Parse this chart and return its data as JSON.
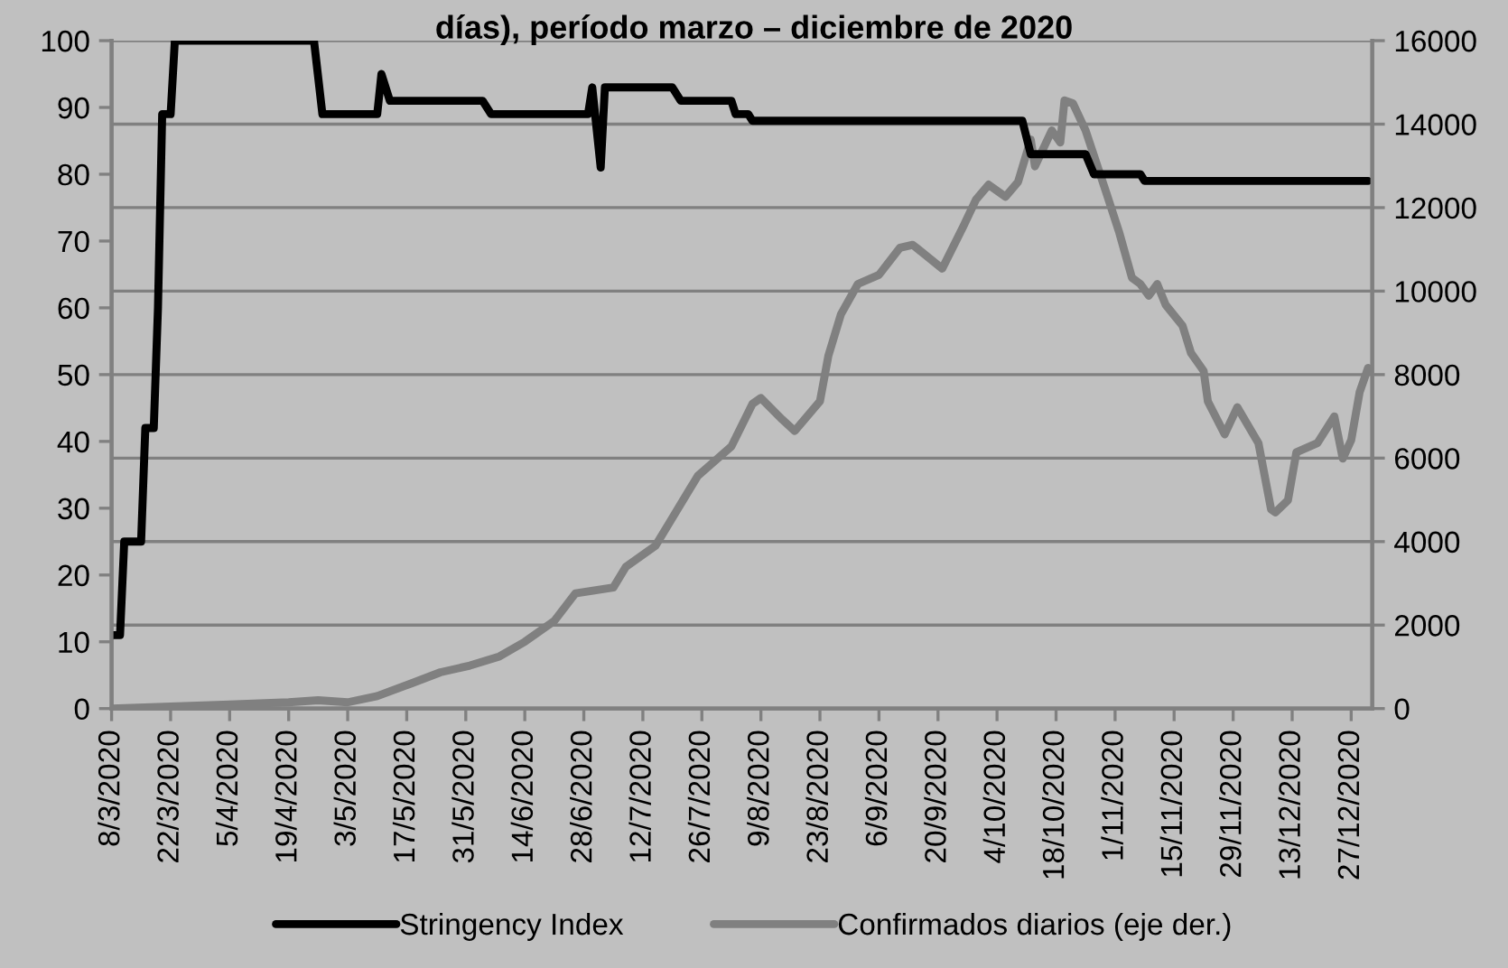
{
  "chart_data": {
    "type": "line",
    "title": "días), período marzo – diciembre de 2020",
    "series": [
      {
        "name": "Stringency Index",
        "color": "#000000",
        "x": [
          "2020-03-08",
          "2020-03-10",
          "2020-03-11",
          "2020-03-15",
          "2020-03-16",
          "2020-03-18",
          "2020-03-19",
          "2020-03-20",
          "2020-03-22",
          "2020-03-23",
          "2020-04-25",
          "2020-04-27",
          "2020-05-10",
          "2020-05-11",
          "2020-05-13",
          "2020-06-04",
          "2020-06-06",
          "2020-06-29",
          "2020-06-30",
          "2020-07-02",
          "2020-07-03",
          "2020-07-19",
          "2020-07-21",
          "2020-08-02",
          "2020-08-03",
          "2020-08-06",
          "2020-08-07",
          "2020-10-10",
          "2020-10-12",
          "2020-10-25",
          "2020-10-27",
          "2020-11-07",
          "2020-11-08",
          "2020-12-31"
        ],
        "values": [
          11,
          11,
          25,
          25,
          42,
          42,
          60,
          89,
          89,
          100,
          100,
          89,
          89,
          95,
          91,
          91,
          89,
          89,
          93,
          81,
          93,
          93,
          91,
          91,
          89,
          89,
          88,
          88,
          83,
          83,
          80,
          80,
          79,
          79
        ]
      },
      {
        "name": "Confirmados diarios (eje der.)",
        "color": "#808080",
        "axis": "y2",
        "x": [
          "2020-03-08",
          "2020-03-22",
          "2020-04-05",
          "2020-04-19",
          "2020-04-26",
          "2020-05-03",
          "2020-05-10",
          "2020-05-18",
          "2020-05-25",
          "2020-06-01",
          "2020-06-08",
          "2020-06-14",
          "2020-06-21",
          "2020-06-26",
          "2020-07-05",
          "2020-07-08",
          "2020-07-15",
          "2020-07-18",
          "2020-07-25",
          "2020-08-02",
          "2020-08-07",
          "2020-08-09",
          "2020-08-14",
          "2020-08-17",
          "2020-08-23",
          "2020-08-25",
          "2020-08-28",
          "2020-09-01",
          "2020-09-06",
          "2020-09-11",
          "2020-09-14",
          "2020-09-21",
          "2020-09-26",
          "2020-09-29",
          "2020-10-02",
          "2020-10-06",
          "2020-10-09",
          "2020-10-12",
          "2020-10-13",
          "2020-10-17",
          "2020-10-19",
          "2020-10-20",
          "2020-10-22",
          "2020-10-25",
          "2020-10-30",
          "2020-11-02",
          "2020-11-05",
          "2020-11-07",
          "2020-11-09",
          "2020-11-11",
          "2020-11-13",
          "2020-11-17",
          "2020-11-19",
          "2020-11-22",
          "2020-11-23",
          "2020-11-27",
          "2020-11-30",
          "2020-12-05",
          "2020-12-08",
          "2020-12-09",
          "2020-12-12",
          "2020-12-14",
          "2020-12-19",
          "2020-12-23",
          "2020-12-25",
          "2020-12-27",
          "2020-12-29",
          "2020-12-31"
        ],
        "values": [
          0,
          50,
          100,
          150,
          200,
          150,
          300,
          600,
          870,
          1030,
          1250,
          1600,
          2100,
          2760,
          2900,
          3400,
          3900,
          4400,
          5570,
          6280,
          7300,
          7440,
          6930,
          6650,
          7360,
          8450,
          9450,
          10170,
          10390,
          11040,
          11110,
          10540,
          11550,
          12190,
          12550,
          12260,
          12620,
          13630,
          12990,
          13850,
          13560,
          14570,
          14500,
          13850,
          12330,
          11400,
          10320,
          10170,
          9890,
          10170,
          9670,
          9170,
          8520,
          8090,
          7360,
          6570,
          7220,
          6360,
          4770,
          4700,
          4990,
          6140,
          6360,
          7000,
          5990,
          6430,
          7580,
          8160
        ]
      }
    ],
    "xlim": [
      "2020-03-08",
      "2021-01-01"
    ],
    "xticks": [
      {
        "value": "2020-03-08",
        "label": "8/3/2020"
      },
      {
        "value": "2020-03-22",
        "label": "22/3/2020"
      },
      {
        "value": "2020-04-05",
        "label": "5/4/2020"
      },
      {
        "value": "2020-04-19",
        "label": "19/4/2020"
      },
      {
        "value": "2020-05-03",
        "label": "3/5/2020"
      },
      {
        "value": "2020-05-17",
        "label": "17/5/2020"
      },
      {
        "value": "2020-05-31",
        "label": "31/5/2020"
      },
      {
        "value": "2020-06-14",
        "label": "14/6/2020"
      },
      {
        "value": "2020-06-28",
        "label": "28/6/2020"
      },
      {
        "value": "2020-07-12",
        "label": "12/7/2020"
      },
      {
        "value": "2020-07-26",
        "label": "26/7/2020"
      },
      {
        "value": "2020-08-09",
        "label": "9/8/2020"
      },
      {
        "value": "2020-08-23",
        "label": "23/8/2020"
      },
      {
        "value": "2020-09-06",
        "label": "6/9/2020"
      },
      {
        "value": "2020-09-20",
        "label": "20/9/2020"
      },
      {
        "value": "2020-10-04",
        "label": "4/10/2020"
      },
      {
        "value": "2020-10-18",
        "label": "18/10/2020"
      },
      {
        "value": "2020-11-01",
        "label": "1/11/2020"
      },
      {
        "value": "2020-11-15",
        "label": "15/11/2020"
      },
      {
        "value": "2020-11-29",
        "label": "29/11/2020"
      },
      {
        "value": "2020-12-13",
        "label": "13/12/2020"
      },
      {
        "value": "2020-12-27",
        "label": "27/12/2020"
      }
    ],
    "ylim": [
      0,
      100
    ],
    "yticks": [
      0,
      10,
      20,
      30,
      40,
      50,
      60,
      70,
      80,
      90,
      100
    ],
    "y2lim": [
      0,
      16000
    ],
    "y2ticks": [
      0,
      2000,
      4000,
      6000,
      8000,
      10000,
      12000,
      14000,
      16000
    ],
    "grid": "y",
    "legend": "bottom",
    "marker": "none",
    "line_style": "solid"
  }
}
